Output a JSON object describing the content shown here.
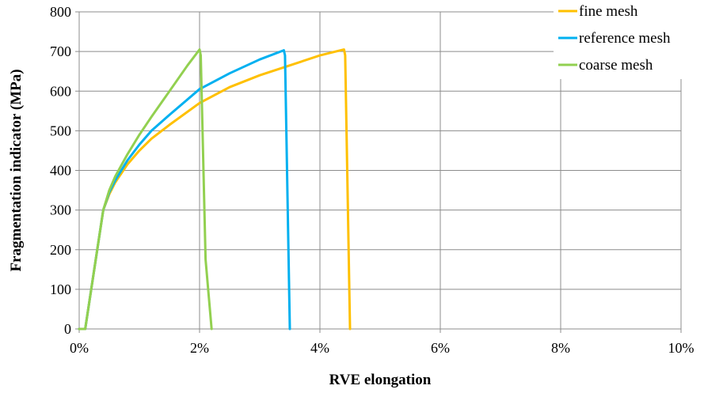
{
  "chart_data": {
    "type": "line",
    "title": "",
    "xlabel": "RVE elongation",
    "ylabel": "Fragmentation indicator (MPa)",
    "xlim": [
      0,
      0.1
    ],
    "ylim": [
      0,
      800
    ],
    "x_ticks": [
      0,
      0.02,
      0.04,
      0.06,
      0.08,
      0.1
    ],
    "x_tick_labels": [
      "0%",
      "2%",
      "4%",
      "6%",
      "8%",
      "10%"
    ],
    "y_ticks": [
      0,
      100,
      200,
      300,
      400,
      500,
      600,
      700,
      800
    ],
    "y_tick_labels": [
      "0",
      "100",
      "200",
      "300",
      "400",
      "500",
      "600",
      "700",
      "800"
    ],
    "grid": true,
    "legend_position": "top-right",
    "series": [
      {
        "name": "fine mesh",
        "color": "#FFC000",
        "x": [
          0.0,
          0.001,
          0.004,
          0.005,
          0.006,
          0.008,
          0.01,
          0.012,
          0.015,
          0.02,
          0.025,
          0.03,
          0.035,
          0.04,
          0.044,
          0.0442,
          0.045
        ],
        "y": [
          0,
          0,
          300,
          340,
          370,
          415,
          450,
          480,
          515,
          570,
          610,
          640,
          665,
          690,
          705,
          690,
          0
        ]
      },
      {
        "name": "reference mesh",
        "color": "#00B0F0",
        "x": [
          0.0,
          0.001,
          0.004,
          0.005,
          0.006,
          0.008,
          0.01,
          0.012,
          0.015,
          0.02,
          0.025,
          0.03,
          0.034,
          0.0342,
          0.035
        ],
        "y": [
          0,
          0,
          300,
          345,
          375,
          425,
          465,
          500,
          540,
          605,
          645,
          680,
          703,
          690,
          0
        ]
      },
      {
        "name": "coarse mesh",
        "color": "#92D050",
        "x": [
          0.0,
          0.001,
          0.004,
          0.005,
          0.006,
          0.008,
          0.01,
          0.012,
          0.015,
          0.018,
          0.02,
          0.0202,
          0.021,
          0.022
        ],
        "y": [
          0,
          0,
          300,
          350,
          385,
          440,
          490,
          535,
          600,
          665,
          705,
          690,
          175,
          0
        ]
      }
    ]
  }
}
